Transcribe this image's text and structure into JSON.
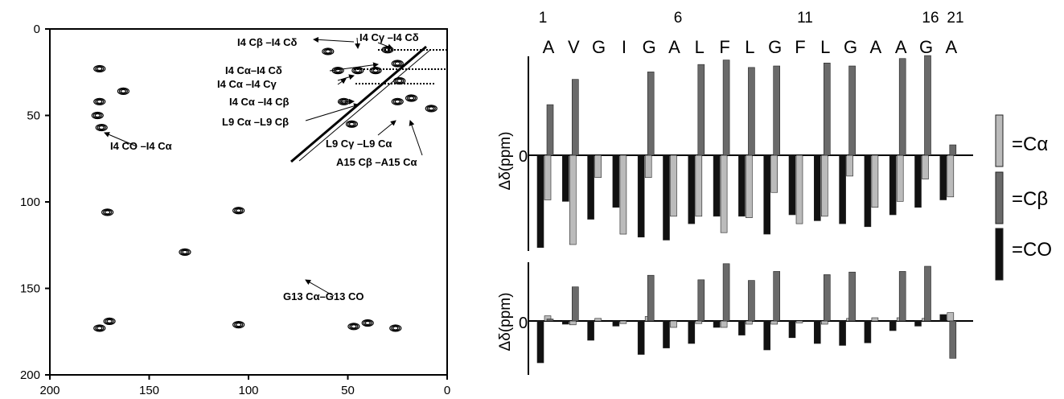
{
  "chart_data": [
    {
      "type": "scatter",
      "title": "",
      "xlim": [
        200,
        0
      ],
      "ylim": [
        0,
        200
      ],
      "x_ticks": [
        "200",
        "150",
        "100",
        "50",
        "0"
      ],
      "y_ticks": [
        "0",
        "50",
        "100",
        "150",
        "200"
      ],
      "points": [
        {
          "x": 175,
          "y": 23
        },
        {
          "x": 175,
          "y": 42
        },
        {
          "x": 176,
          "y": 50
        },
        {
          "x": 174,
          "y": 57
        },
        {
          "x": 163,
          "y": 36
        },
        {
          "x": 171,
          "y": 106
        },
        {
          "x": 105,
          "y": 105
        },
        {
          "x": 132,
          "y": 129
        },
        {
          "x": 105,
          "y": 171
        },
        {
          "x": 175,
          "y": 173
        },
        {
          "x": 170,
          "y": 169
        },
        {
          "x": 47,
          "y": 172
        },
        {
          "x": 40,
          "y": 170
        },
        {
          "x": 26,
          "y": 173
        },
        {
          "x": 60,
          "y": 13
        },
        {
          "x": 55,
          "y": 24
        },
        {
          "x": 45,
          "y": 24
        },
        {
          "x": 36,
          "y": 24
        },
        {
          "x": 52,
          "y": 42
        },
        {
          "x": 48,
          "y": 55
        },
        {
          "x": 25,
          "y": 42
        },
        {
          "x": 30,
          "y": 12
        },
        {
          "x": 25,
          "y": 20
        },
        {
          "x": 24,
          "y": 30
        },
        {
          "x": 18,
          "y": 40
        },
        {
          "x": 8,
          "y": 46
        }
      ],
      "annotations": [
        "I4 Cβ –I4 Cδ",
        "I4 Cγ –I4 Cδ",
        "I4 Cα–I4 Cδ",
        "I4 Cα –I4 Cγ",
        "I4 Cα –I4 Cβ",
        "L9 Cα –L9 Cβ",
        "I4 CO –I4 Cα",
        "L9 Cγ –L9 Cα",
        "A15 Cβ –A15 Cα",
        "G13 Cα–G13 CO"
      ]
    },
    {
      "type": "bar",
      "ylabel": "Δδ(ppm)",
      "categories": [
        "A",
        "V",
        "G",
        "I",
        "G",
        "A",
        "L",
        "F",
        "L",
        "G",
        "F",
        "L",
        "G",
        "A",
        "A",
        "G",
        "A"
      ],
      "residue_numbers": [
        "1",
        "6",
        "11",
        "16",
        "21"
      ],
      "zero_label": "0",
      "series": [
        {
          "name": "=Cα",
          "values": [
            -3.0,
            -6.0,
            -1.5,
            -5.3,
            -1.5,
            -4.1,
            -4.1,
            -5.2,
            -4.2,
            -2.5,
            -4.6,
            -4.1,
            -1.4,
            -3.5,
            -3.1,
            -1.6,
            -2.8
          ]
        },
        {
          "name": "=Cβ",
          "values": [
            3.4,
            5.1,
            null,
            null,
            5.6,
            null,
            6.1,
            6.4,
            5.9,
            6.0,
            null,
            6.2,
            6.0,
            null,
            6.5,
            6.7,
            0.7
          ]
        },
        {
          "name": "=CO",
          "values": [
            -6.2,
            -3.1,
            -4.3,
            -3.5,
            -5.5,
            -5.7,
            -4.6,
            -4.1,
            -4.1,
            -5.3,
            -4.0,
            -4.4,
            -4.6,
            -4.8,
            -4.0,
            -3.5,
            -3.0
          ]
        }
      ]
    },
    {
      "type": "bar",
      "ylabel": "Δδ(ppm)",
      "categories": [
        "A",
        "V",
        "G",
        "I",
        "G",
        "A",
        "L",
        "F",
        "L",
        "G",
        "F",
        "L",
        "G",
        "A",
        "A",
        "G",
        "A"
      ],
      "zero_label": "0",
      "series": [
        {
          "name": "=Cα",
          "values": [
            0.8,
            -0.6,
            0.4,
            -0.4,
            0.7,
            -1.0,
            -0.4,
            -1.0,
            -0.5,
            -0.5,
            -0.3,
            -0.5,
            0.4,
            0.5,
            0.5,
            0.4,
            1.3
          ]
        },
        {
          "name": "=Cβ",
          "values": [
            0.3,
            5.3,
            null,
            null,
            7.1,
            null,
            6.4,
            8.9,
            6.3,
            7.7,
            null,
            7.2,
            7.6,
            null,
            7.7,
            8.5,
            -5.8
          ]
        },
        {
          "name": "=CO",
          "values": [
            -6.5,
            -0.5,
            -3.0,
            -0.8,
            -5.2,
            -4.2,
            -3.5,
            -1.0,
            -2.2,
            -4.5,
            -2.6,
            -3.5,
            -3.8,
            -3.4,
            -1.5,
            -0.8,
            1.0
          ]
        }
      ]
    }
  ],
  "legend": [
    {
      "label": "=Cα",
      "color": "#bbbbbb"
    },
    {
      "label": "=Cβ",
      "color": "#6a6a6a"
    },
    {
      "label": "=CO",
      "color": "#111111"
    }
  ]
}
